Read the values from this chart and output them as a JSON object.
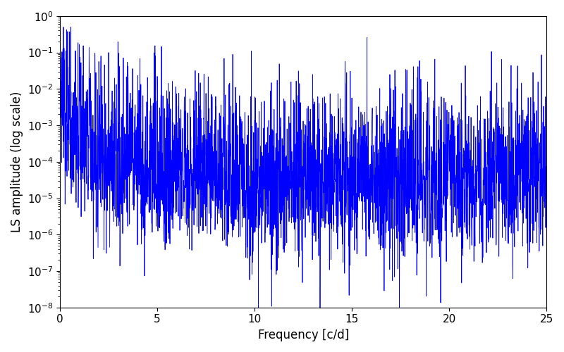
{
  "xlabel": "Frequency [c/d]",
  "ylabel": "LS amplitude (log scale)",
  "line_color": "#0000FF",
  "xlim": [
    0,
    25
  ],
  "ylim": [
    1e-08,
    1.0
  ],
  "freq_max": 25,
  "n_points": 3000,
  "seed": 12345,
  "figsize": [
    8.0,
    5.0
  ],
  "dpi": 100,
  "background_color": "#ffffff",
  "tick_labelsize": 11,
  "linewidth": 0.6
}
